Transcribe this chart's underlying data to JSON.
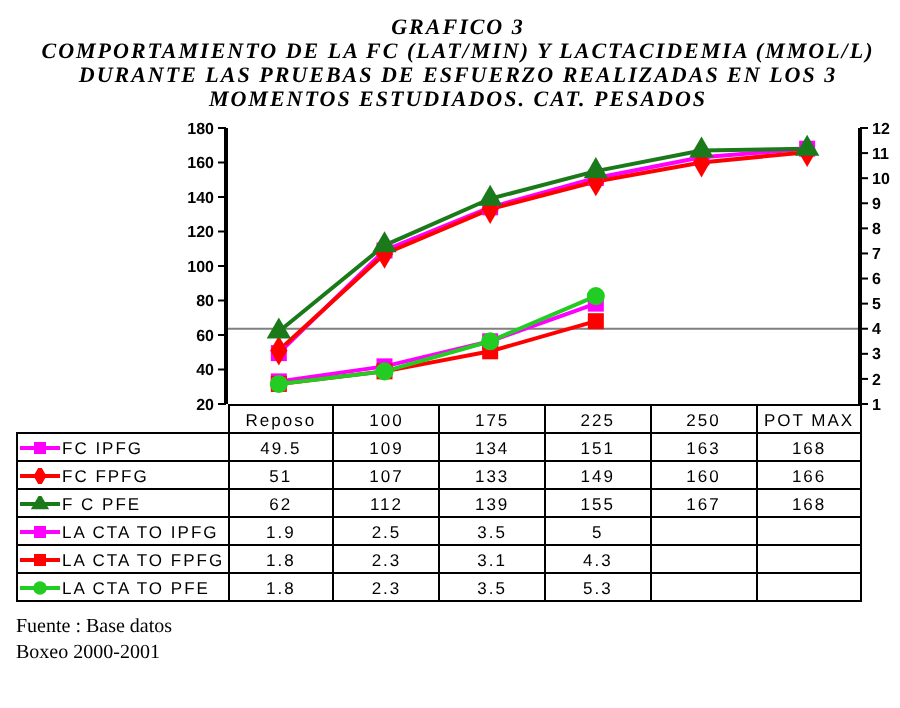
{
  "chart_data": {
    "type": "line",
    "title": "GRAFICO 3",
    "subtitle": "COMPORTAMIENTO DE LA FC (LAT/MIN) Y LACTACIDEMIA (MMOL/L) DURANTE LAS PRUEBAS DE ESFUERZO REALIZADAS EN LOS 3  MOMENTOS ESTUDIADOS. CAT. PESADOS",
    "categories": [
      "Reposo",
      "100",
      "175",
      "225",
      "250",
      "POT MAX"
    ],
    "series": [
      {
        "name": "FC IPFG",
        "color": "#ff00ff",
        "marker": "square",
        "values": [
          49.5,
          109,
          134,
          151,
          163,
          168
        ]
      },
      {
        "name": "FC FPFG",
        "color": "#ff0000",
        "marker": "diamond",
        "values": [
          51,
          107,
          133,
          149,
          160,
          166
        ]
      },
      {
        "name": "F C PFE",
        "color": "#1a7a1a",
        "marker": "triangle",
        "values": [
          62,
          112,
          139,
          155,
          167,
          168
        ]
      },
      {
        "name": "LA CTA TO IPFG",
        "color": "#ff00ff",
        "marker": "square",
        "axis": "y2",
        "values": [
          1.9,
          2.5,
          3.5,
          5,
          null,
          null
        ]
      },
      {
        "name": "LA CTA TO FPFG",
        "color": "#ff0000",
        "marker": "square",
        "axis": "y2",
        "values": [
          1.8,
          2.3,
          3.1,
          4.3,
          null,
          null
        ]
      },
      {
        "name": "LA CTA TO PFE",
        "color": "#22cc22",
        "marker": "circle",
        "axis": "y2",
        "values": [
          1.8,
          2.3,
          3.5,
          5.3,
          null,
          null
        ]
      }
    ],
    "ylim": [
      20,
      180
    ],
    "yticks": [
      20,
      40,
      60,
      80,
      100,
      120,
      140,
      160,
      180
    ],
    "y2lim": [
      1,
      12
    ],
    "y2ticks": [
      1,
      2,
      3,
      4,
      5,
      6,
      7,
      8,
      9,
      10,
      11,
      12
    ],
    "ref_lines": [
      {
        "axis": "y2",
        "value": 4,
        "color": "#808080"
      }
    ],
    "grid": false,
    "legend": "bottom",
    "data_labels": true,
    "annotations": [
      "Fuente : Base datos",
      "Boxeo 2000-2001"
    ]
  }
}
